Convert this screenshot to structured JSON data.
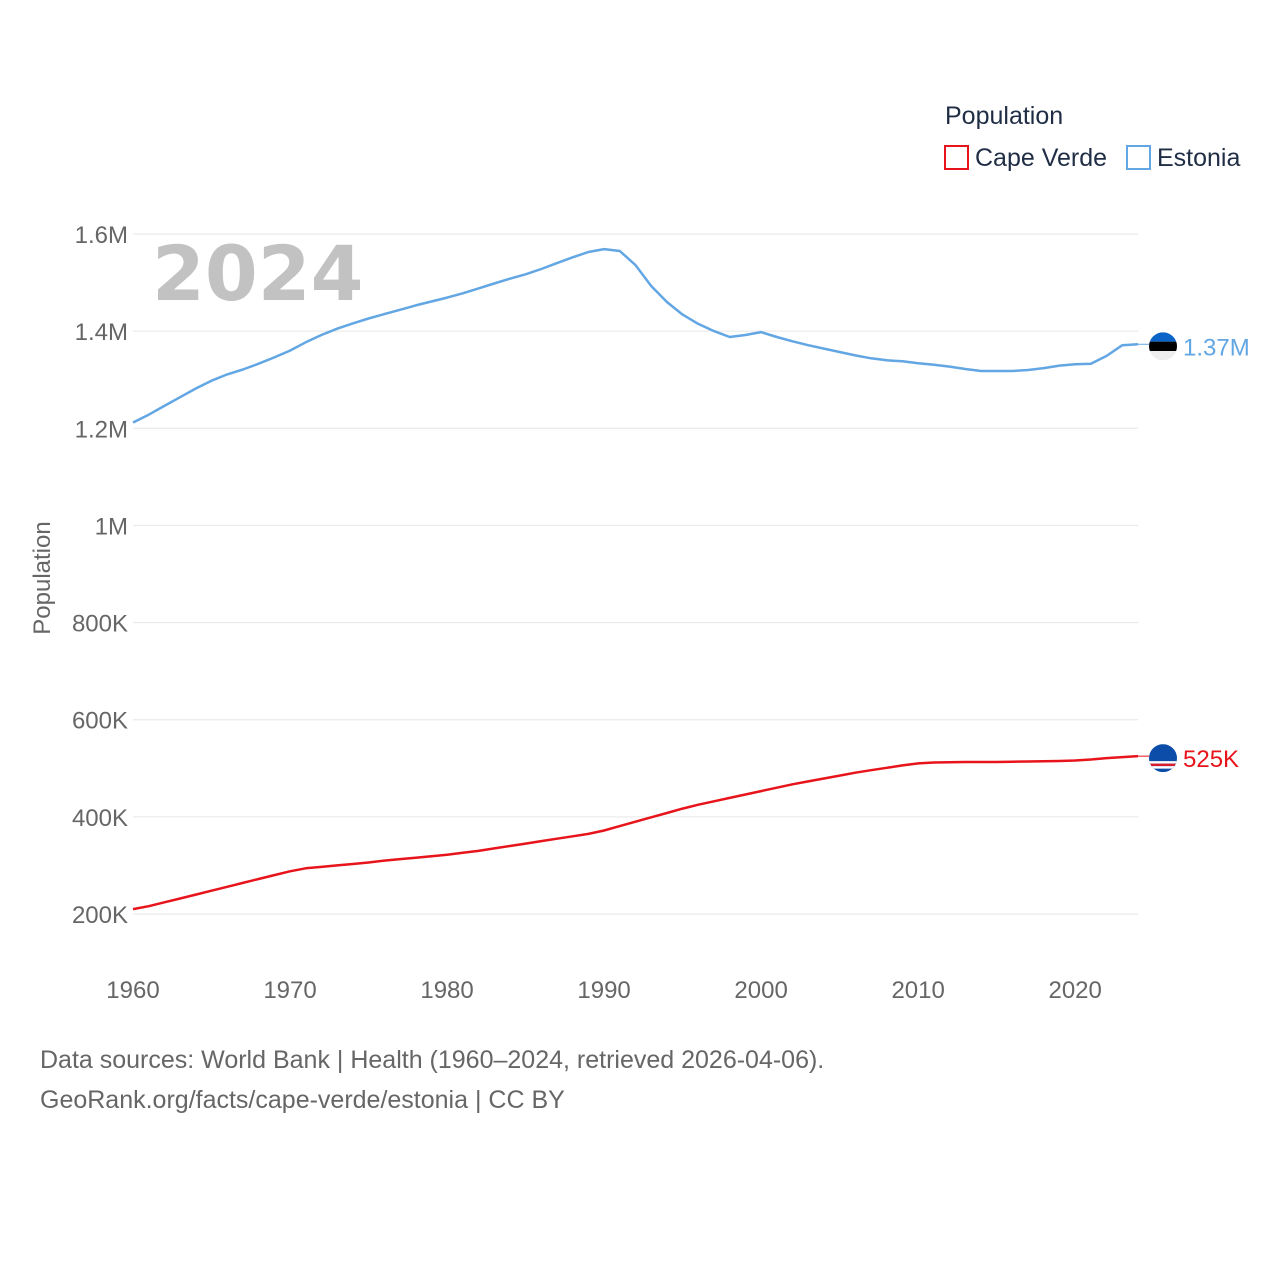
{
  "chart_data": {
    "type": "line",
    "legend_title": "Population",
    "ylabel": "Population",
    "year_label": "2024",
    "xlim": [
      1960,
      2024
    ],
    "ylim": [
      100000,
      1650000
    ],
    "x_ticks": [
      1960,
      1970,
      1980,
      1990,
      2000,
      2010,
      2020
    ],
    "x_tick_labels": [
      "1960",
      "1970",
      "1980",
      "1990",
      "2000",
      "2010",
      "2020"
    ],
    "y_ticks": [
      200000,
      400000,
      600000,
      800000,
      1000000,
      1200000,
      1400000,
      1600000
    ],
    "y_tick_labels": [
      "200K",
      "400K",
      "600K",
      "800K",
      "1M",
      "1.2M",
      "1.4M",
      "1.6M"
    ],
    "series": [
      {
        "name": "Cape Verde",
        "color": "#e8141b",
        "end_label": "525K",
        "flag_icon": "cape-verde-flag-icon",
        "x": [
          1960,
          1961,
          1962,
          1963,
          1964,
          1965,
          1966,
          1967,
          1968,
          1969,
          1970,
          1971,
          1972,
          1973,
          1974,
          1975,
          1976,
          1977,
          1978,
          1979,
          1980,
          1981,
          1982,
          1983,
          1984,
          1985,
          1986,
          1987,
          1988,
          1989,
          1990,
          1991,
          1992,
          1993,
          1994,
          1995,
          1996,
          1997,
          1998,
          1999,
          2000,
          2001,
          2002,
          2003,
          2004,
          2005,
          2006,
          2007,
          2008,
          2009,
          2010,
          2011,
          2012,
          2013,
          2014,
          2015,
          2016,
          2017,
          2018,
          2019,
          2020,
          2021,
          2022,
          2023,
          2024
        ],
        "values": [
          210000,
          216000,
          224000,
          232000,
          240000,
          248000,
          256000,
          264000,
          272000,
          280000,
          288000,
          294000,
          297000,
          300000,
          303000,
          306000,
          310000,
          313000,
          316000,
          319000,
          322000,
          326000,
          330000,
          335000,
          340000,
          345000,
          350000,
          355000,
          360000,
          365000,
          372000,
          381000,
          390000,
          399000,
          408000,
          417000,
          425000,
          432000,
          439000,
          446000,
          453000,
          460000,
          467000,
          473000,
          479000,
          485000,
          491000,
          496000,
          501000,
          506000,
          510000,
          512000,
          512500,
          513000,
          513000,
          513000,
          513500,
          514000,
          514500,
          515000,
          516000,
          518000,
          521000,
          523000,
          525000
        ]
      },
      {
        "name": "Estonia",
        "color": "#62a6e3",
        "end_label": "1.37M",
        "flag_icon": "estonia-flag-icon",
        "x": [
          1960,
          1961,
          1962,
          1963,
          1964,
          1965,
          1966,
          1967,
          1968,
          1969,
          1970,
          1971,
          1972,
          1973,
          1974,
          1975,
          1976,
          1977,
          1978,
          1979,
          1980,
          1981,
          1982,
          1983,
          1984,
          1985,
          1986,
          1987,
          1988,
          1989,
          1990,
          1991,
          1992,
          1993,
          1994,
          1995,
          1996,
          1997,
          1998,
          1999,
          2000,
          2001,
          2002,
          2003,
          2004,
          2005,
          2006,
          2007,
          2008,
          2009,
          2010,
          2011,
          2012,
          2013,
          2014,
          2015,
          2016,
          2017,
          2018,
          2019,
          2020,
          2021,
          2022,
          2023,
          2024
        ],
        "values": [
          1212000,
          1228000,
          1246000,
          1264000,
          1282000,
          1298000,
          1311000,
          1321000,
          1333000,
          1346000,
          1360000,
          1377000,
          1392000,
          1405000,
          1416000,
          1426000,
          1435000,
          1444000,
          1453000,
          1461000,
          1469000,
          1478000,
          1488000,
          1498000,
          1508000,
          1517000,
          1528000,
          1540000,
          1552000,
          1563000,
          1569000,
          1565000,
          1536000,
          1493000,
          1460000,
          1434000,
          1415000,
          1400000,
          1388000,
          1392000,
          1398000,
          1388000,
          1379000,
          1371000,
          1364000,
          1357000,
          1350000,
          1344000,
          1340000,
          1338000,
          1334000,
          1331000,
          1327000,
          1322000,
          1318000,
          1318000,
          1318000,
          1320000,
          1324000,
          1329000,
          1332000,
          1333000,
          1349000,
          1371000,
          1373000
        ]
      }
    ]
  },
  "footer": {
    "line1": "Data sources: World Bank | Health (1960–2024, retrieved 2026-04-06).",
    "line2": "GeoRank.org/facts/cape-verde/estonia | CC BY"
  }
}
